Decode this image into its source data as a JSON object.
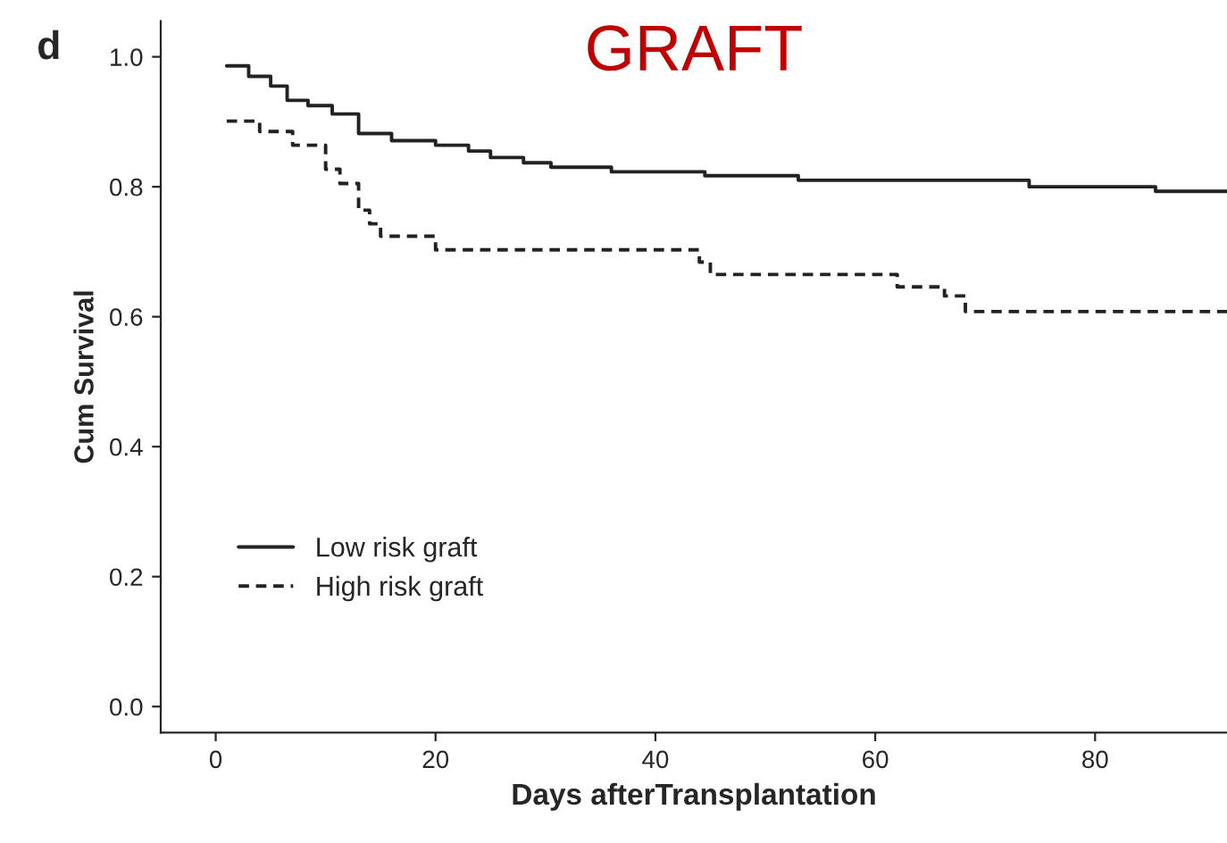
{
  "chart_data": {
    "type": "step",
    "title": "GRAFT",
    "xlabel": "Days afterTransplantation",
    "ylabel": "Cum Survival",
    "annotations": [
      "d"
    ],
    "series": [
      {
        "name": "Low risk graft",
        "color": "#222222",
        "line_style": "solid",
        "x": [
          1,
          3,
          5,
          6.5,
          8.4,
          10.6,
          13,
          16,
          20,
          23,
          25,
          28,
          30.5,
          36,
          44.5,
          53,
          74,
          85.5,
          92
        ],
        "values": [
          0.986,
          0.97,
          0.955,
          0.933,
          0.925,
          0.912,
          0.882,
          0.871,
          0.864,
          0.855,
          0.845,
          0.837,
          0.83,
          0.823,
          0.817,
          0.81,
          0.8,
          0.793,
          0.793
        ]
      },
      {
        "name": "High risk graft",
        "color": "#222222",
        "line_style": "dashed",
        "x": [
          1,
          4,
          7,
          10,
          11.3,
          13,
          14,
          15,
          20,
          44,
          45,
          62,
          66.3,
          68.2,
          92
        ],
        "values": [
          0.901,
          0.885,
          0.864,
          0.827,
          0.805,
          0.764,
          0.743,
          0.724,
          0.703,
          0.684,
          0.665,
          0.646,
          0.632,
          0.608,
          0.608
        ]
      }
    ],
    "xlim": [
      -5,
      92
    ],
    "xticks": [
      0,
      20,
      40,
      60,
      80
    ],
    "ylim": [
      -0.04,
      1.055
    ],
    "yticks": [
      {
        "value": 0,
        "label": "0.0"
      },
      {
        "value": 0.2,
        "label": "0.2"
      },
      {
        "value": 0.4,
        "label": "0.4"
      },
      {
        "value": 0.6,
        "label": "0.6"
      },
      {
        "value": 0.8,
        "label": "0.8"
      },
      {
        "value": 1,
        "label": "1.0"
      }
    ],
    "grid": false,
    "legend": "lower left",
    "marker": "none"
  }
}
